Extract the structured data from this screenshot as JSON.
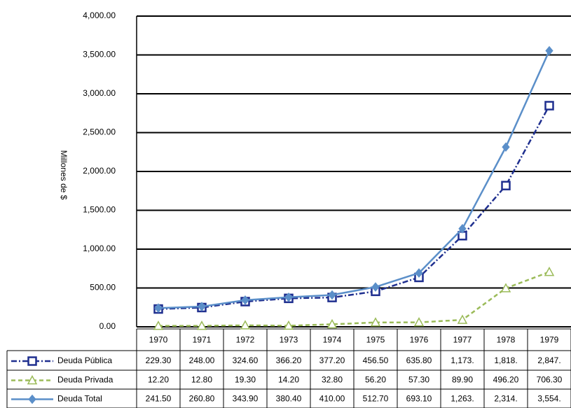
{
  "chart_data": {
    "type": "line",
    "y_label": "Millones de $",
    "categories": [
      "1970",
      "1971",
      "1972",
      "1973",
      "1974",
      "1975",
      "1976",
      "1977",
      "1978",
      "1979"
    ],
    "series": [
      {
        "name": "Deuda Pública",
        "color": "#1f2f8f",
        "dash": "dash-dot",
        "marker": "square",
        "values": [
          229.3,
          248,
          324.6,
          366.2,
          377.2,
          456.5,
          635.8,
          1173,
          1818,
          2847
        ],
        "value_labels": [
          "229.30",
          "248.00",
          "324.60",
          "366.20",
          "377.20",
          "456.50",
          "635.80",
          "1,173.",
          "1,818.",
          "2,847."
        ]
      },
      {
        "name": "Deuda Privada",
        "color": "#9bbb59",
        "dash": "dash",
        "marker": "triangle",
        "values": [
          12.2,
          12.8,
          19.3,
          14.2,
          32.8,
          56.2,
          57.3,
          89.9,
          496.2,
          706.3
        ],
        "value_labels": [
          "12.20",
          "12.80",
          "19.30",
          "14.20",
          "32.80",
          "56.20",
          "57.30",
          "89.90",
          "496.20",
          "706.30"
        ]
      },
      {
        "name": "Deuda Total",
        "color": "#5b8fc9",
        "dash": "solid",
        "marker": "diamond",
        "values": [
          241.5,
          260.8,
          343.9,
          380.4,
          410,
          512.7,
          693.1,
          1263,
          2314,
          3554
        ],
        "value_labels": [
          "241.50",
          "260.80",
          "343.90",
          "380.40",
          "410.00",
          "512.70",
          "693.10",
          "1,263.",
          "2,314.",
          "3,554."
        ]
      }
    ],
    "ylim": [
      0,
      4000
    ],
    "yticks": [
      {
        "value": 0,
        "label": "0.00"
      },
      {
        "value": 500,
        "label": "500.00"
      },
      {
        "value": 1000,
        "label": "1,000.00"
      },
      {
        "value": 1500,
        "label": "1,500.00"
      },
      {
        "value": 2000,
        "label": "2,000.00"
      },
      {
        "value": 2500,
        "label": "2,500.00"
      },
      {
        "value": 3000,
        "label": "3,000.00"
      },
      {
        "value": 3500,
        "label": "3,500.00"
      },
      {
        "value": 4000,
        "label": "4,000.00"
      }
    ],
    "grid": true
  }
}
